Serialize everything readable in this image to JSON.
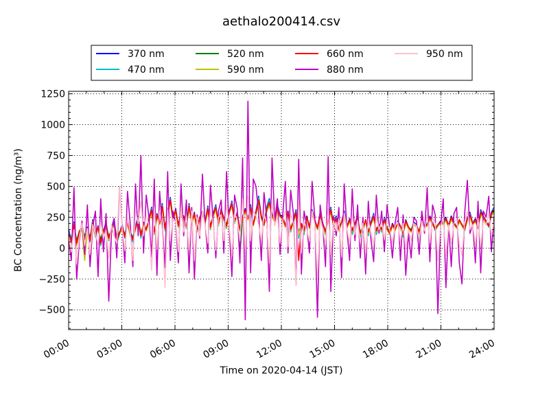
{
  "chart_data": {
    "type": "line",
    "title": "aethalo200414.csv",
    "xlabel": "Time on 2020-04-14 (JST)",
    "ylabel": "BC Concentration (ng/m³)",
    "ylim": [
      -660,
      1270
    ],
    "xlim": [
      "00:00",
      "24:00"
    ],
    "yticks": [
      -500,
      -250,
      0,
      250,
      500,
      750,
      1000,
      1250
    ],
    "xticks": [
      "00:00",
      "03:00",
      "06:00",
      "09:00",
      "12:00",
      "15:00",
      "18:00",
      "21:00",
      "24:00"
    ],
    "grid": true,
    "legend_position": "top-center",
    "series": [
      {
        "name": "370 nm",
        "color": "#0000ff",
        "values": [
          150,
          60,
          210,
          40,
          120,
          190,
          80,
          170,
          60,
          230,
          100,
          180,
          30,
          140,
          210,
          70,
          160,
          240,
          50,
          120,
          190,
          90,
          230,
          110,
          60,
          180,
          260,
          90,
          210,
          150,
          240,
          330,
          120,
          280,
          200,
          360,
          150,
          290,
          410,
          230,
          320,
          180,
          300,
          250,
          170,
          360,
          200,
          290,
          140,
          250,
          300,
          210,
          340,
          160,
          280,
          350,
          190,
          320,
          240,
          170,
          300,
          380,
          210,
          290,
          150,
          260,
          320,
          240,
          350,
          190,
          300,
          420,
          260,
          190,
          330,
          400,
          280,
          220,
          350,
          270,
          260,
          180,
          300,
          140,
          230,
          310,
          90,
          200,
          120,
          260,
          170,
          310,
          230,
          160,
          290,
          200,
          120,
          240,
          330,
          180,
          260,
          150,
          210,
          300,
          170,
          240,
          120,
          200,
          260,
          90,
          150,
          230,
          110,
          210,
          280,
          120,
          190,
          140,
          250,
          160,
          120,
          200,
          160,
          220,
          180,
          100,
          230,
          170,
          140,
          210,
          190,
          120,
          240,
          170,
          200,
          260,
          210,
          150,
          190,
          220,
          220,
          250,
          180,
          260,
          210,
          170,
          230,
          190,
          150,
          250,
          290,
          200,
          240,
          170,
          310,
          260,
          220,
          180,
          290,
          330
        ]
      },
      {
        "name": "470 nm",
        "color": "#00bfbf",
        "values": [
          130,
          50,
          200,
          30,
          110,
          180,
          70,
          160,
          50,
          220,
          90,
          170,
          20,
          130,
          200,
          60,
          150,
          230,
          40,
          110,
          180,
          80,
          220,
          100,
          50,
          170,
          250,
          80,
          200,
          140,
          230,
          320,
          110,
          270,
          190,
          350,
          140,
          280,
          400,
          220,
          310,
          170,
          290,
          240,
          160,
          350,
          190,
          280,
          130,
          240,
          290,
          200,
          330,
          150,
          270,
          340,
          180,
          310,
          230,
          160,
          290,
          370,
          200,
          280,
          140,
          250,
          310,
          230,
          340,
          180,
          290,
          410,
          250,
          180,
          320,
          390,
          270,
          210,
          340,
          260,
          250,
          170,
          290,
          130,
          220,
          300,
          80,
          190,
          110,
          250,
          160,
          300,
          220,
          150,
          280,
          190,
          110,
          230,
          320,
          170,
          250,
          140,
          200,
          290,
          160,
          230,
          110,
          190,
          250,
          80,
          140,
          220,
          100,
          200,
          270,
          110,
          180,
          130,
          240,
          150,
          110,
          190,
          150,
          210,
          170,
          90,
          220,
          160,
          130,
          200,
          180,
          110,
          230,
          160,
          190,
          250,
          200,
          140,
          180,
          210,
          210,
          240,
          170,
          250,
          200,
          160,
          220,
          180,
          140,
          240,
          280,
          190,
          230,
          160,
          300,
          250,
          210,
          170,
          280,
          320
        ]
      },
      {
        "name": "520 nm",
        "color": "#008000",
        "values": [
          100,
          80,
          180,
          60,
          140,
          160,
          100,
          150,
          90,
          200,
          120,
          160,
          70,
          150,
          180,
          100,
          140,
          200,
          90,
          130,
          170,
          110,
          200,
          130,
          90,
          160,
          230,
          120,
          190,
          160,
          220,
          300,
          140,
          260,
          210,
          330,
          170,
          270,
          380,
          240,
          300,
          190,
          280,
          260,
          190,
          330,
          220,
          270,
          160,
          240,
          280,
          220,
          310,
          180,
          260,
          320,
          210,
          300,
          250,
          190,
          290,
          350,
          230,
          270,
          -50,
          250,
          300,
          250,
          320,
          200,
          280,
          380,
          260,
          200,
          300,
          360,
          260,
          230,
          320,
          260,
          240,
          190,
          280,
          160,
          220,
          280,
          130,
          200,
          150,
          240,
          180,
          280,
          220,
          170,
          270,
          200,
          140,
          230,
          300,
          190,
          240,
          160,
          210,
          270,
          180,
          230,
          150,
          200,
          240,
          130,
          170,
          220,
          140,
          200,
          250,
          150,
          190,
          160,
          230,
          170,
          130,
          190,
          160,
          210,
          180,
          130,
          210,
          170,
          150,
          200,
          180,
          140,
          220,
          170,
          190,
          240,
          200,
          160,
          190,
          210,
          200,
          230,
          180,
          240,
          200,
          170,
          220,
          190,
          160,
          230,
          260,
          200,
          220,
          180,
          280,
          250,
          210,
          190,
          270,
          300
        ]
      },
      {
        "name": "590 nm",
        "color": "#bfbf00",
        "values": [
          90,
          40,
          160,
          20,
          110,
          150,
          -100,
          140,
          60,
          190,
          100,
          150,
          40,
          130,
          170,
          70,
          130,
          190,
          60,
          120,
          160,
          90,
          190,
          110,
          70,
          150,
          220,
          100,
          180,
          140,
          210,
          290,
          120,
          250,
          190,
          320,
          150,
          260,
          370,
          220,
          290,
          170,
          270,
          240,
          170,
          320,
          200,
          260,
          140,
          230,
          270,
          200,
          300,
          160,
          250,
          310,
          190,
          290,
          230,
          170,
          280,
          340,
          210,
          260,
          150,
          240,
          290,
          230,
          310,
          180,
          270,
          370,
          240,
          180,
          290,
          350,
          250,
          210,
          310,
          250,
          230,
          170,
          270,
          140,
          210,
          270,
          110,
          190,
          130,
          230,
          160,
          270,
          210,
          150,
          260,
          190,
          120,
          220,
          290,
          170,
          230,
          140,
          200,
          260,
          160,
          220,
          130,
          190,
          230,
          110,
          150,
          210,
          120,
          190,
          240,
          130,
          180,
          140,
          220,
          150,
          110,
          180,
          140,
          200,
          170,
          110,
          200,
          160,
          130,
          190,
          170,
          120,
          210,
          160,
          180,
          230,
          190,
          150,
          180,
          200,
          190,
          220,
          170,
          230,
          190,
          160,
          210,
          180,
          150,
          220,
          250,
          190,
          210,
          170,
          270,
          240,
          200,
          180,
          260,
          290
        ]
      },
      {
        "name": "660 nm",
        "color": "#ff0000",
        "values": [
          120,
          50,
          190,
          40,
          130,
          170,
          70,
          160,
          60,
          210,
          110,
          170,
          40,
          140,
          190,
          80,
          150,
          210,
          60,
          120,
          180,
          90,
          210,
          120,
          70,
          160,
          240,
          100,
          200,
          150,
          230,
          310,
          130,
          270,
          200,
          340,
          160,
          280,
          390,
          230,
          310,
          180,
          290,
          250,
          180,
          340,
          210,
          280,
          150,
          250,
          290,
          210,
          320,
          170,
          270,
          330,
          200,
          310,
          240,
          180,
          290,
          360,
          220,
          280,
          150,
          250,
          310,
          240,
          330,
          190,
          290,
          390,
          250,
          190,
          310,
          370,
          270,
          220,
          330,
          260,
          250,
          180,
          290,
          150,
          220,
          290,
          -100,
          200,
          140,
          250,
          170,
          290,
          230,
          160,
          280,
          200,
          130,
          230,
          310,
          180,
          240,
          150,
          210,
          280,
          170,
          230,
          140,
          200,
          250,
          120,
          160,
          230,
          130,
          200,
          260,
          140,
          190,
          150,
          230,
          160,
          120,
          190,
          150,
          210,
          180,
          120,
          220,
          170,
          140,
          200,
          180,
          130,
          230,
          170,
          190,
          250,
          200,
          150,
          190,
          210,
          210,
          240,
          180,
          250,
          200,
          170,
          230,
          190,
          150,
          240,
          270,
          200,
          230,
          170,
          290,
          260,
          210,
          180,
          280,
          310
        ]
      },
      {
        "name": "880 nm",
        "color": "#bf00bf",
        "values": [
          80,
          -100,
          490,
          -250,
          60,
          220,
          -50,
          350,
          -150,
          170,
          300,
          -230,
          400,
          -30,
          280,
          -430,
          120,
          240,
          -80,
          500,
          180,
          -120,
          460,
          200,
          -150,
          520,
          100,
          750,
          -40,
          430,
          250,
          -70,
          560,
          -220,
          460,
          180,
          -160,
          620,
          -100,
          300,
          200,
          -120,
          520,
          100,
          390,
          -200,
          330,
          -250,
          270,
          80,
          600,
          190,
          -40,
          510,
          230,
          -80,
          300,
          390,
          -40,
          620,
          160,
          -230,
          430,
          320,
          -120,
          730,
          -580,
          1190,
          -200,
          560,
          500,
          280,
          -100,
          450,
          250,
          -350,
          730,
          220,
          400,
          -50,
          260,
          540,
          -40,
          470,
          280,
          -300,
          720,
          -210,
          300,
          180,
          -40,
          540,
          250,
          -560,
          350,
          180,
          -150,
          740,
          -350,
          260,
          100,
          330,
          -240,
          520,
          160,
          -100,
          480,
          60,
          350,
          -80,
          250,
          -210,
          380,
          70,
          -110,
          430,
          120,
          300,
          -30,
          350,
          160,
          -80,
          200,
          330,
          -100,
          270,
          -220,
          120,
          -80,
          250,
          220,
          -50,
          300,
          120,
          490,
          -110,
          350,
          270,
          -530,
          180,
          400,
          -320,
          200,
          -150,
          280,
          330,
          -120,
          -290,
          280,
          550,
          120,
          200,
          -120,
          380,
          -200,
          300,
          250,
          420,
          -30,
          260
        ]
      },
      {
        "name": "950 nm",
        "color": "#ffc0cb",
        "values": [
          100,
          -30,
          150,
          -130,
          90,
          200,
          20,
          160,
          -50,
          190,
          120,
          30,
          210,
          80,
          140,
          -80,
          190,
          100,
          40,
          500,
          160,
          -20,
          250,
          130,
          -100,
          300,
          200,
          380,
          100,
          270,
          180,
          -180,
          330,
          -10,
          300,
          150,
          -320,
          310,
          60,
          240,
          210,
          -30,
          330,
          130,
          260,
          -20,
          300,
          -100,
          250,
          100,
          300,
          180,
          40,
          310,
          200,
          -20,
          250,
          270,
          60,
          350,
          180,
          -60,
          280,
          230,
          60,
          400,
          -30,
          420,
          60,
          300,
          260,
          190,
          60,
          280,
          200,
          -120,
          390,
          180,
          260,
          40,
          220,
          300,
          10,
          280,
          200,
          -300,
          360,
          -40,
          220,
          150,
          60,
          300,
          190,
          -230,
          230,
          160,
          30,
          320,
          -50,
          220,
          140,
          230,
          -70,
          280,
          160,
          40,
          270,
          110,
          220,
          40,
          200,
          -40,
          230,
          120,
          30,
          260,
          150,
          210,
          70,
          230,
          150,
          40,
          180,
          210,
          50,
          200,
          -10,
          150,
          60,
          200,
          180,
          70,
          220,
          140,
          270,
          40,
          250,
          200,
          -100,
          170,
          250,
          -60,
          190,
          40,
          200,
          240,
          30,
          -60,
          210,
          300,
          150,
          190,
          30,
          240,
          10,
          220,
          190,
          280,
          100,
          220
        ]
      }
    ]
  }
}
